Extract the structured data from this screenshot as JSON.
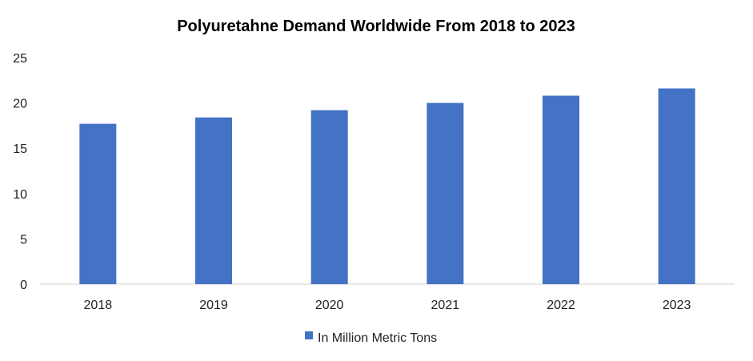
{
  "chart_data": {
    "type": "bar",
    "title": "Polyuretahne Demand Worldwide From 2018 to 2023",
    "xlabel": "",
    "ylabel": "",
    "categories": [
      "2018",
      "2019",
      "2020",
      "2021",
      "2022",
      "2023"
    ],
    "series": [
      {
        "name": "In Million Metric Tons",
        "values": [
          17.7,
          18.4,
          19.2,
          20.0,
          20.8,
          21.6
        ],
        "color": "#4472C4"
      }
    ],
    "ylim": [
      0,
      25
    ],
    "yticks": [
      "0",
      "5",
      "10",
      "15",
      "20",
      "25"
    ],
    "grid": false,
    "legend": "bottom"
  }
}
